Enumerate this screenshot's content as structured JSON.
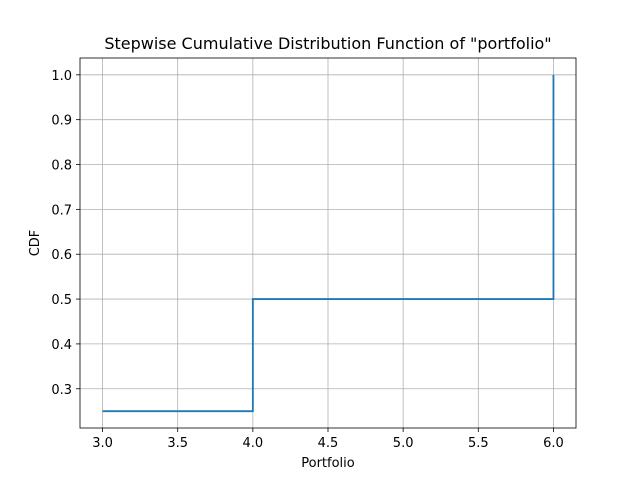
{
  "chart_data": {
    "type": "line",
    "drawstyle": "steps-post",
    "title": "Stepwise Cumulative Distribution Function of \"portfolio\"",
    "xlabel": "Portfolio",
    "ylabel": "CDF",
    "xlim": [
      2.85,
      6.15
    ],
    "ylim": [
      0.2125,
      1.0375
    ],
    "grid": true,
    "xticks": [
      3.0,
      3.5,
      4.0,
      4.5,
      5.0,
      5.5,
      6.0
    ],
    "xtick_labels": [
      "3.0",
      "3.5",
      "4.0",
      "4.5",
      "5.0",
      "5.5",
      "6.0"
    ],
    "yticks": [
      0.3,
      0.4,
      0.5,
      0.6,
      0.7,
      0.8,
      0.9,
      1.0
    ],
    "ytick_labels": [
      "0.3",
      "0.4",
      "0.5",
      "0.6",
      "0.7",
      "0.8",
      "0.9",
      "1.0"
    ],
    "series": [
      {
        "color": "#1f77b4",
        "x": [
          3.0,
          4.0,
          6.0,
          6.0
        ],
        "y": [
          0.25,
          0.5,
          0.5,
          1.0
        ]
      }
    ]
  }
}
